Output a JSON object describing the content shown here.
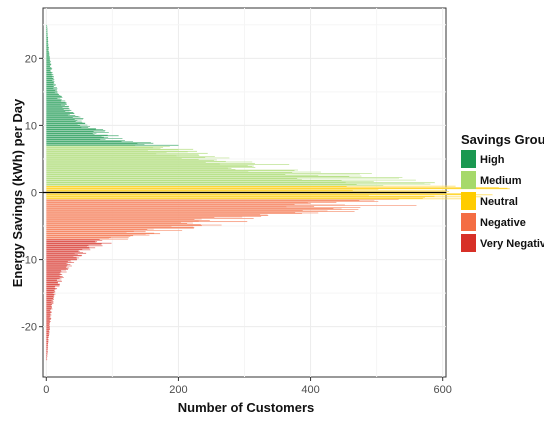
{
  "chart_data": {
    "type": "bar",
    "orientation": "horizontal",
    "title": "",
    "xlabel": "Number of Customers",
    "ylabel": "Energy Savings (kWh) per Day",
    "xlim": [
      -5,
      605
    ],
    "ylim": [
      -27.5,
      27.5
    ],
    "x_ticks": [
      0,
      200,
      400,
      600
    ],
    "y_ticks": [
      -20,
      -10,
      0,
      10,
      20
    ],
    "grid": true,
    "zero_line": true,
    "legend": {
      "title": "Savings Group",
      "placement": "right",
      "entries": [
        {
          "name": "High",
          "color": "#1a9850",
          "y_range": [
            7,
            25
          ]
        },
        {
          "name": "Medium",
          "color": "#a6d96a",
          "y_range": [
            1,
            7
          ]
        },
        {
          "name": "Neutral",
          "color": "#ffcc00",
          "y_range": [
            -1,
            1
          ]
        },
        {
          "name": "Negative",
          "color": "#f46d43",
          "y_range": [
            -7,
            -1
          ]
        },
        {
          "name": "Very Negative",
          "color": "#d73027",
          "y_range": [
            -25,
            -7
          ]
        }
      ]
    },
    "bin_width": 0.1,
    "distribution_peak": {
      "y": 0.2,
      "count": 590
    },
    "profile_points": [
      {
        "y": -25,
        "count": 1
      },
      {
        "y": -22,
        "count": 3
      },
      {
        "y": -20,
        "count": 5
      },
      {
        "y": -17,
        "count": 8
      },
      {
        "y": -15,
        "count": 12
      },
      {
        "y": -12,
        "count": 25
      },
      {
        "y": -10,
        "count": 40
      },
      {
        "y": -8,
        "count": 70
      },
      {
        "y": -7,
        "count": 100
      },
      {
        "y": -6,
        "count": 150
      },
      {
        "y": -5,
        "count": 210
      },
      {
        "y": -4,
        "count": 280
      },
      {
        "y": -3,
        "count": 380
      },
      {
        "y": -2,
        "count": 460
      },
      {
        "y": -1,
        "count": 540
      },
      {
        "y": 0,
        "count": 575
      },
      {
        "y": 0.2,
        "count": 590
      },
      {
        "y": 1,
        "count": 560
      },
      {
        "y": 2,
        "count": 490
      },
      {
        "y": 3,
        "count": 400
      },
      {
        "y": 4,
        "count": 320
      },
      {
        "y": 5,
        "count": 250
      },
      {
        "y": 6,
        "count": 200
      },
      {
        "y": 7,
        "count": 170
      },
      {
        "y": 8,
        "count": 100
      },
      {
        "y": 10,
        "count": 60
      },
      {
        "y": 12,
        "count": 35
      },
      {
        "y": 15,
        "count": 15
      },
      {
        "y": 18,
        "count": 8
      },
      {
        "y": 20,
        "count": 5
      },
      {
        "y": 22,
        "count": 3
      },
      {
        "y": 25,
        "count": 1
      }
    ]
  }
}
